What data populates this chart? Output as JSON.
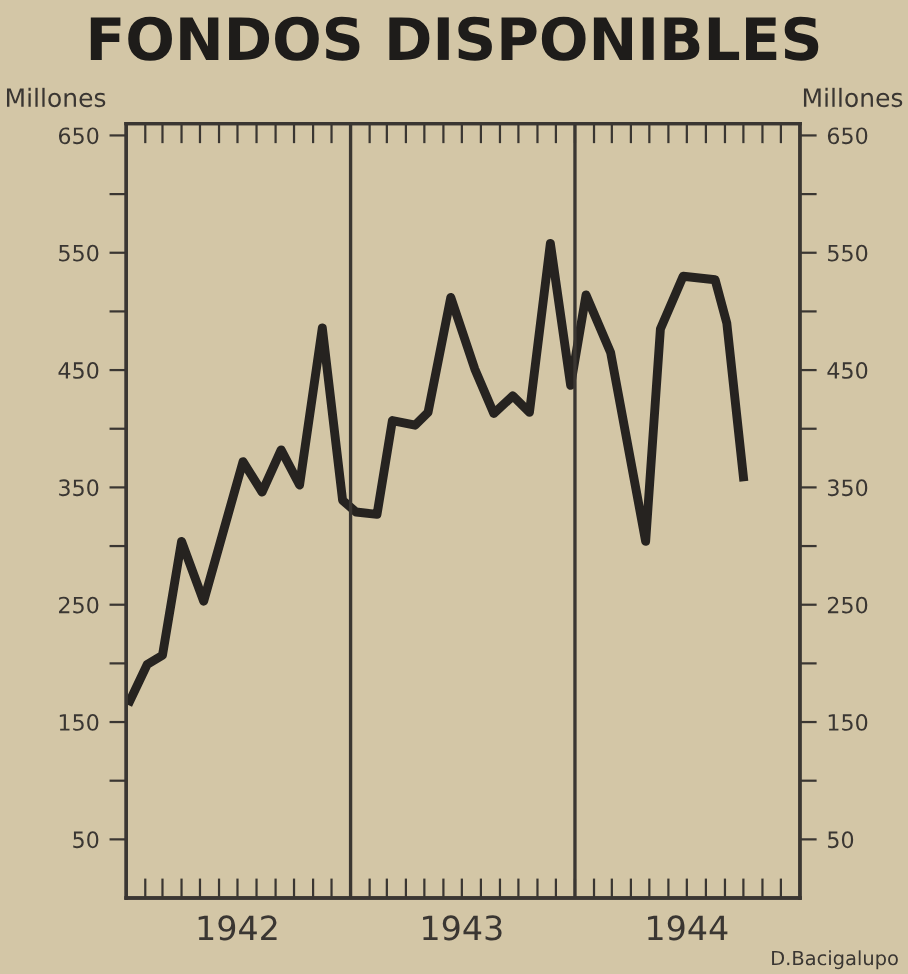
{
  "chart_data": {
    "type": "line",
    "title": "FONDOS DISPONIBLES",
    "ylabel": "Millones",
    "y2label": "Millones",
    "x": [
      "1942-01-07",
      "1942-02-04",
      "1942-03-01",
      "1942-04-01",
      "1942-05-07",
      "1942-07-10",
      "1942-08-10",
      "1942-09-10",
      "1942-10-10",
      "1942-11-16",
      "1942-12-19",
      "1943-01-10",
      "1943-02-13",
      "1943-03-10",
      "1943-04-16",
      "1943-05-07",
      "1943-06-13",
      "1943-07-22",
      "1943-08-22",
      "1943-09-22",
      "1943-10-19",
      "1943-11-22",
      "1943-12-25",
      "1944-01-19",
      "1944-02-28",
      "1944-04-25",
      "1944-05-19",
      "1944-06-25",
      "1944-08-16",
      "1944-09-04",
      "1944-10-01"
    ],
    "series": [
      {
        "color": "#262320",
        "values": [
          168,
          199,
          207,
          304,
          253,
          372,
          346,
          382,
          352,
          486,
          339,
          329,
          327,
          407,
          403,
          414,
          512,
          451,
          413,
          428,
          414,
          558,
          437,
          514,
          465,
          304,
          485,
          530,
          527,
          490,
          359
        ]
      }
    ],
    "xlim": [
      "1942-01-01",
      "1945-01-01"
    ],
    "xticks": [
      {
        "value": "1942-02-01",
        "label": null
      },
      {
        "value": "1942-03-01",
        "label": null
      },
      {
        "value": "1942-04-01",
        "label": null
      },
      {
        "value": "1942-05-01",
        "label": null
      },
      {
        "value": "1942-06-01",
        "label": null
      },
      {
        "value": "1942-07-01",
        "label": "1942"
      },
      {
        "value": "1942-08-01",
        "label": null
      },
      {
        "value": "1942-09-01",
        "label": null
      },
      {
        "value": "1942-10-01",
        "label": null
      },
      {
        "value": "1942-11-01",
        "label": null
      },
      {
        "value": "1942-12-01",
        "label": null
      },
      {
        "value": "1943-01-01",
        "label": null
      },
      {
        "value": "1943-02-01",
        "label": null
      },
      {
        "value": "1943-03-01",
        "label": null
      },
      {
        "value": "1943-04-01",
        "label": null
      },
      {
        "value": "1943-05-01",
        "label": null
      },
      {
        "value": "1943-06-01",
        "label": null
      },
      {
        "value": "1943-07-01",
        "label": "1943"
      },
      {
        "value": "1943-08-01",
        "label": null
      },
      {
        "value": "1943-09-01",
        "label": null
      },
      {
        "value": "1943-10-01",
        "label": null
      },
      {
        "value": "1943-11-01",
        "label": null
      },
      {
        "value": "1943-12-01",
        "label": null
      },
      {
        "value": "1944-01-01",
        "label": null
      },
      {
        "value": "1944-02-01",
        "label": null
      },
      {
        "value": "1944-03-01",
        "label": null
      },
      {
        "value": "1944-04-01",
        "label": null
      },
      {
        "value": "1944-05-01",
        "label": null
      },
      {
        "value": "1944-06-01",
        "label": null
      },
      {
        "value": "1944-07-01",
        "label": "1944"
      },
      {
        "value": "1944-08-01",
        "label": null
      },
      {
        "value": "1944-09-01",
        "label": null
      },
      {
        "value": "1944-10-01",
        "label": null
      },
      {
        "value": "1944-11-01",
        "label": null
      },
      {
        "value": "1944-12-01",
        "label": null
      }
    ],
    "ylim": [
      0,
      660
    ],
    "yticks": [
      50,
      {
        "value": 100,
        "label": null
      },
      150,
      {
        "value": 200,
        "label": null
      },
      250,
      {
        "value": 300,
        "label": null
      },
      350,
      {
        "value": 400,
        "label": null
      },
      450,
      {
        "value": 500,
        "label": null
      },
      550,
      {
        "value": 600,
        "label": null
      },
      650
    ],
    "y2lim": [
      0,
      660
    ],
    "y2ticks": [
      50,
      {
        "value": 100,
        "label": null
      },
      150,
      {
        "value": 200,
        "label": null
      },
      250,
      {
        "value": 300,
        "label": null
      },
      350,
      {
        "value": 400,
        "label": null
      },
      450,
      {
        "value": 500,
        "label": null
      },
      550,
      {
        "value": 600,
        "label": null
      },
      650
    ],
    "ref_lines": [
      {
        "axis": "x",
        "value": "1943-01-01",
        "color": "#3a3632"
      },
      {
        "axis": "x",
        "value": "1944-01-01",
        "color": "#3a3632"
      }
    ],
    "annotations": [
      "D.Bacigalupo"
    ],
    "grid": false,
    "legend": false,
    "marker": "none",
    "line_style": "solid"
  }
}
